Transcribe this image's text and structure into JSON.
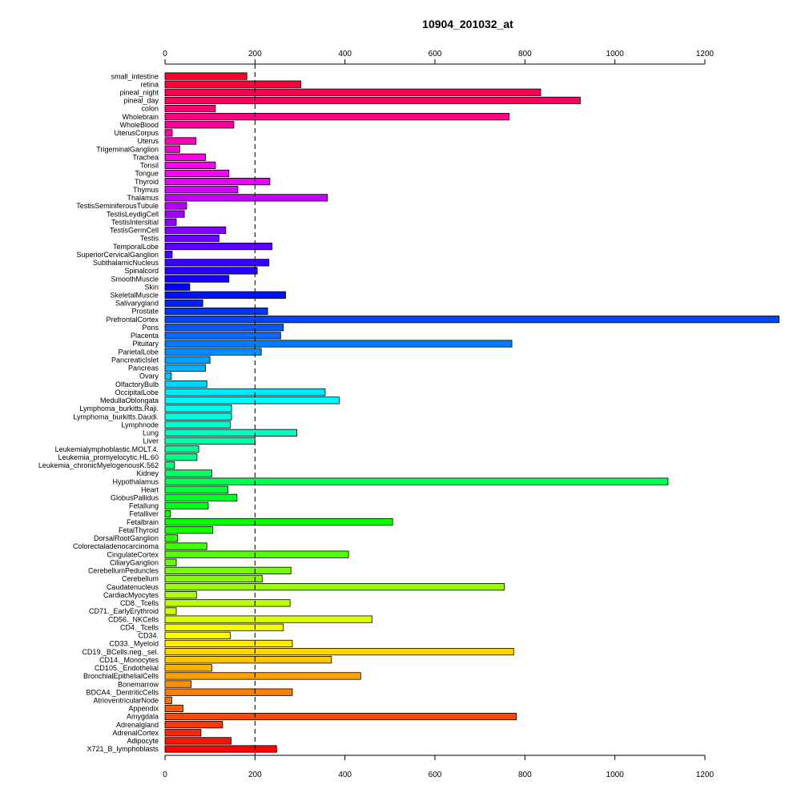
{
  "chart_data": {
    "type": "bar",
    "orientation": "horizontal",
    "title": "10904_201032_at",
    "xlabel": "",
    "ylabel": "",
    "xlim": [
      0,
      1360
    ],
    "xticks": [
      0,
      200,
      400,
      600,
      800,
      1000,
      1200
    ],
    "reference_line": 200,
    "grid": false,
    "categories": [
      "small_intestine",
      "retina",
      "pineal_night",
      "pineal_day",
      "colon",
      "Wholebrain",
      "WholeBlood",
      "UterusCorpus",
      "Uterus",
      "TrigeminalGanglion",
      "Trachea",
      "Tonsil",
      "Tongue",
      "Thyroid",
      "Thymus",
      "Thalamus",
      "TestisSeminiferousTubule",
      "TestisLeydigCell",
      "TestisIntersitial",
      "TestisGermCell",
      "Testis",
      "TemporalLobe",
      "SuperiorCervicalGanglion",
      "SubthalamicNucleus",
      "Spinalcord",
      "SmoothMuscle",
      "Skin",
      "SkeletalMuscle",
      "Salivarygland",
      "Prostate",
      "PrefrontalCortex",
      "Pons",
      "Placenta",
      "Pituitary",
      "ParietalLobe",
      "PancreaticIslet",
      "Pancreas",
      "Ovary",
      "OlfactoryBulb",
      "OccipitalLobe",
      "MedullaOblongata",
      "Lymphoma_burkitts.Raji.",
      "Lymphoma_burkitts.Daudi.",
      "Lymphnode",
      "Lung",
      "Liver",
      "Leukemialymphoblastic.MOLT.4.",
      "Leukemia_promyelocytic.HL.60",
      "Leukemia_chronicMyelogenousK.562",
      "Kidney",
      "Hypothalamus",
      "Heart",
      "GlobusPallidus",
      "Fetallung",
      "Fetalliver",
      "Fetalbrain",
      "FetalThyroid",
      "DorsalRootGanglion",
      "Colorectaladenocarcinoma",
      "CingulateCortex",
      "CiliaryGanglion",
      "CerebellumPeduncles",
      "Cerebellum",
      "Caudatenucleus",
      "CardiacMyocytes",
      "CD8._Tcells",
      "CD71._EarlyErythroid",
      "CD56._NKCells",
      "CD4._Tcells",
      "CD34.",
      "CD33._Myeloid",
      "CD19._BCells.neg._sel.",
      "CD14._Monocytes",
      "CD105._Endothelial",
      "BronchialEpithelialCells",
      "Bonemarrow",
      "BDCA4._DentriticCells",
      "AtrioventricularNode",
      "Appendix",
      "Amygdala",
      "Adrenalgland",
      "AdrenalCortex",
      "Adipocyte",
      "X721_B_lymphoblasts"
    ],
    "values": [
      182,
      302,
      835,
      923,
      112,
      765,
      153,
      16,
      69,
      33,
      90,
      112,
      142,
      233,
      162,
      361,
      48,
      43,
      25,
      135,
      120,
      238,
      16,
      231,
      205,
      142,
      55,
      268,
      84,
      228,
      1365,
      263,
      257,
      771,
      214,
      100,
      90,
      14,
      93,
      356,
      387,
      148,
      148,
      145,
      293,
      200,
      75,
      71,
      21,
      104,
      1118,
      140,
      160,
      96,
      12,
      506,
      106,
      28,
      93,
      408,
      25,
      280,
      216,
      754,
      70,
      278,
      25,
      460,
      263,
      145,
      283,
      775,
      370,
      104,
      435,
      58,
      283,
      15,
      40,
      781,
      128,
      80,
      147,
      248
    ]
  }
}
